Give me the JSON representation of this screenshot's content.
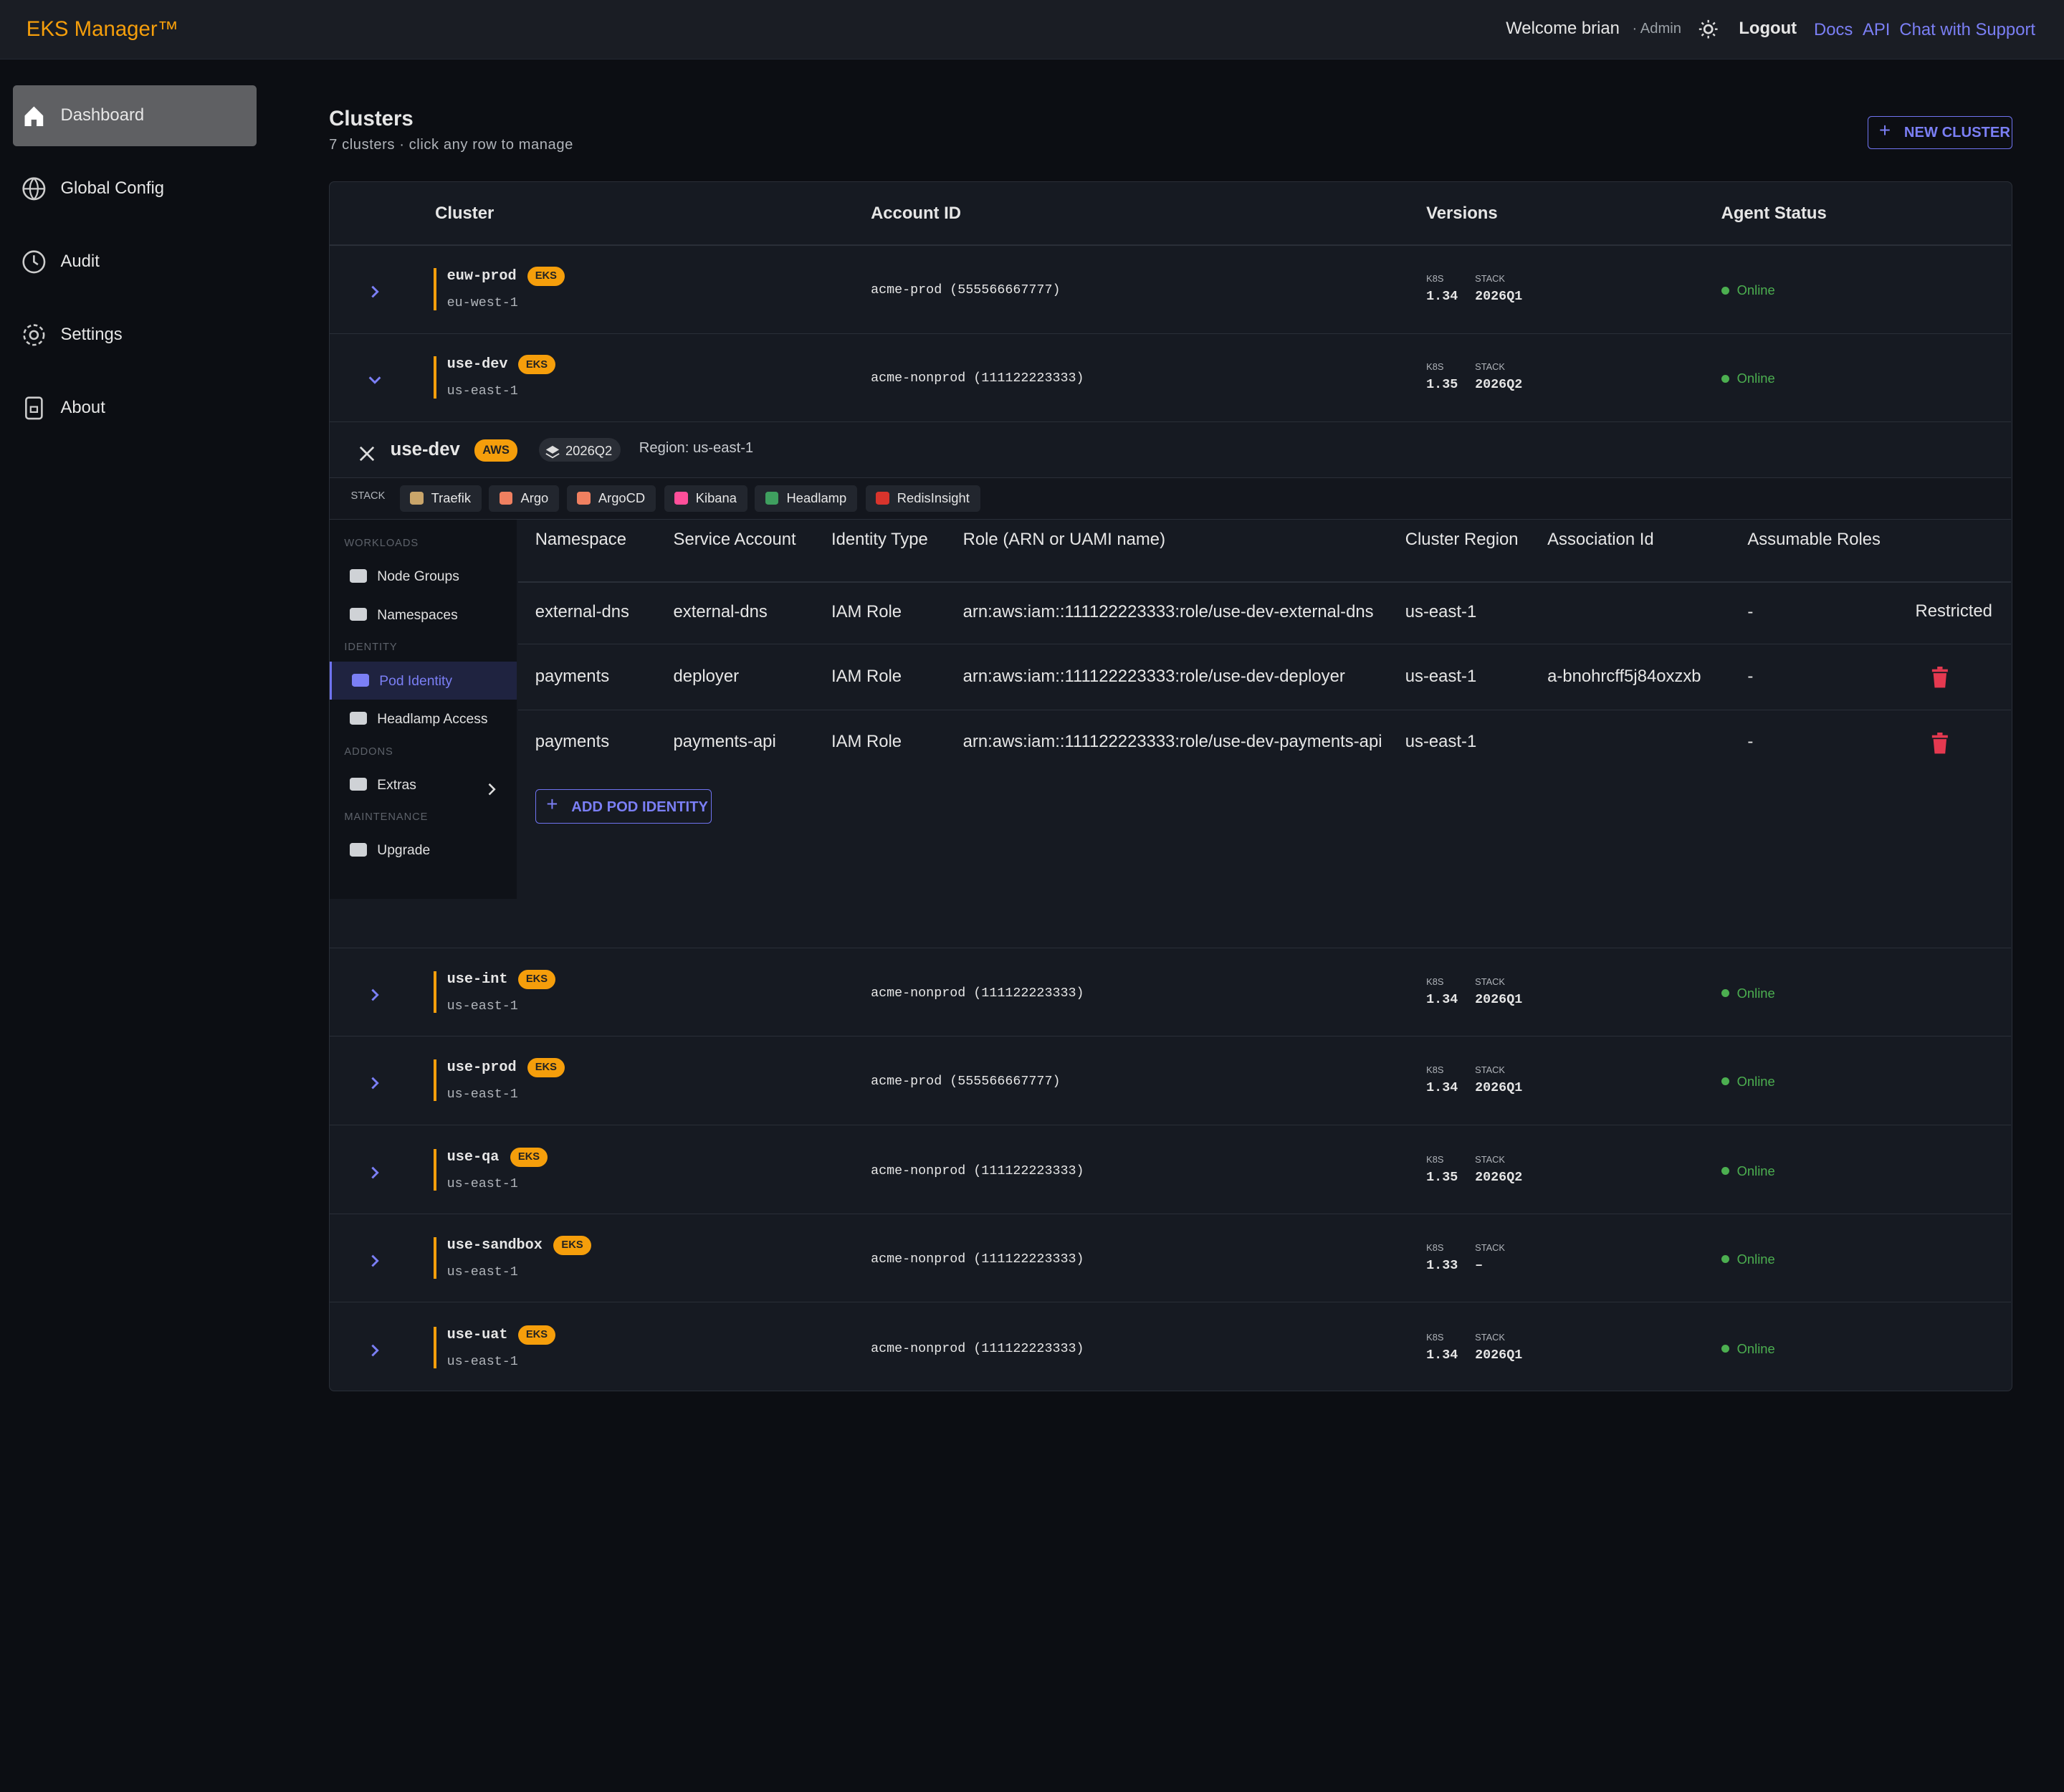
{
  "header": {
    "brand": "EKS Manager™",
    "welcome": "Welcome brian",
    "role": "· Admin",
    "logout": "Logout",
    "links": [
      "Docs",
      "API",
      "Chat with Support"
    ]
  },
  "sidebar": [
    "Dashboard",
    "Global Config",
    "Audit",
    "Settings",
    "About"
  ],
  "page": {
    "title": "Clusters",
    "subtitle": "7 clusters · click any row to manage",
    "new_cluster": "NEW CLUSTER"
  },
  "table": {
    "headers": [
      "Cluster",
      "Account ID",
      "Versions",
      "Agent Status"
    ],
    "version_labels": {
      "k8s": "K8S",
      "stack": "STACK"
    },
    "clusters": [
      {
        "name": "euw-prod",
        "badge": "EKS",
        "region": "eu-west-1",
        "account": "acme-prod (555566667777)",
        "k8s": "1.34",
        "stack": "2026Q1",
        "status": "Online"
      },
      {
        "name": "use-dev",
        "badge": "EKS",
        "region": "us-east-1",
        "account": "acme-nonprod (111122223333)",
        "k8s": "1.35",
        "stack": "2026Q2",
        "status": "Online"
      },
      {
        "name": "use-int",
        "badge": "EKS",
        "region": "us-east-1",
        "account": "acme-nonprod (111122223333)",
        "k8s": "1.34",
        "stack": "2026Q1",
        "status": "Online"
      },
      {
        "name": "use-prod",
        "badge": "EKS",
        "region": "us-east-1",
        "account": "acme-prod (555566667777)",
        "k8s": "1.34",
        "stack": "2026Q1",
        "status": "Online"
      },
      {
        "name": "use-qa",
        "badge": "EKS",
        "region": "us-east-1",
        "account": "acme-nonprod (111122223333)",
        "k8s": "1.35",
        "stack": "2026Q2",
        "status": "Online"
      },
      {
        "name": "use-sandbox",
        "badge": "EKS",
        "region": "us-east-1",
        "account": "acme-nonprod (111122223333)",
        "k8s": "1.33",
        "stack": "–",
        "status": "Online"
      },
      {
        "name": "use-uat",
        "badge": "EKS",
        "region": "us-east-1",
        "account": "acme-nonprod (111122223333)",
        "k8s": "1.34",
        "stack": "2026Q1",
        "status": "Online"
      }
    ]
  },
  "detail": {
    "name": "use-dev",
    "provider": "AWS",
    "stack_version": "2026Q2",
    "region": "Region: us-east-1",
    "stack_label": "STACK",
    "stack": [
      "Traefik",
      "Argo",
      "ArgoCD",
      "Kibana",
      "Headlamp",
      "RedisInsight"
    ],
    "nav": [
      {
        "title": "WORKLOADS",
        "items": [
          "Node Groups",
          "Namespaces"
        ]
      },
      {
        "title": "IDENTITY",
        "items": [
          "Pod Identity",
          "Headlamp Access"
        ]
      },
      {
        "title": "ADDONS",
        "items": [
          "Extras"
        ]
      },
      {
        "title": "MAINTENANCE",
        "items": [
          "Upgrade"
        ]
      }
    ],
    "headers": [
      "Namespace",
      "Service Account",
      "Identity Type",
      "Role (ARN or UAMI name)",
      "Cluster Region",
      "Association Id",
      "Assumable Roles"
    ],
    "rows": [
      {
        "namespace": "external-dns",
        "service_account": "external-dns",
        "identity_type": "IAM Role",
        "role": "arn:aws:iam::111122223333:role/use-dev-external-dns",
        "region": "us-east-1",
        "assumable_roles": "-",
        "action": "Restricted"
      },
      {
        "namespace": "payments",
        "service_account": "deployer",
        "identity_type": "IAM Role",
        "role": "arn:aws:iam::111122223333:role/use-dev-deployer",
        "region": "us-east-1",
        "association_id": "a-bnohrcff5j84oxzxb",
        "assumable_roles": "-"
      },
      {
        "namespace": "payments",
        "service_account": "payments-api",
        "identity_type": "IAM Role",
        "role": "arn:aws:iam::111122223333:role/use-dev-payments-api",
        "region": "us-east-1",
        "assumable_roles": "-"
      }
    ],
    "add_button": "ADD POD IDENTITY"
  }
}
